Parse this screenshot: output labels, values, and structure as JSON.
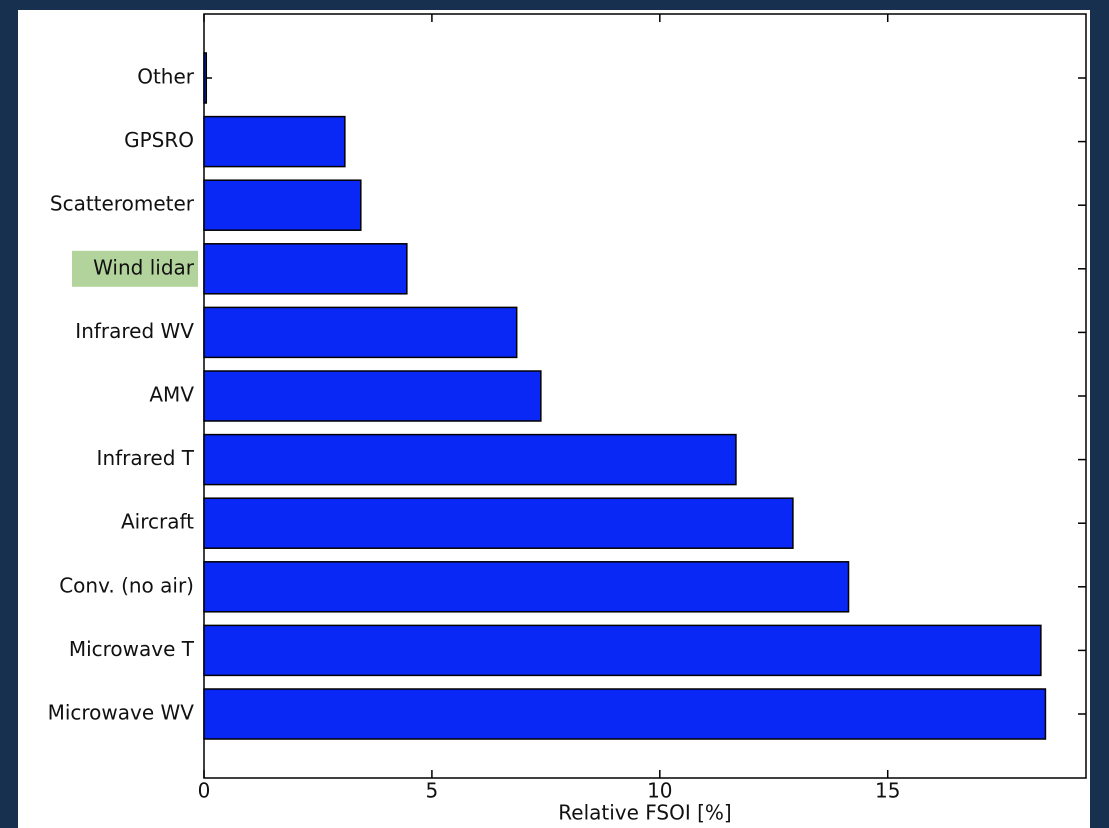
{
  "chart_data": {
    "type": "barh",
    "categories": [
      "Other",
      "GPSRO",
      "Scatterometer",
      "Wind lidar",
      "Infrared WV",
      "AMV",
      "Infrared T",
      "Aircraft",
      "Conv. (no air)",
      "Microwave T",
      "Microwave WV"
    ],
    "values": [
      0.05,
      3.09,
      3.44,
      4.45,
      6.86,
      7.39,
      11.67,
      12.92,
      14.14,
      18.36,
      18.46
    ],
    "color": "#0a28f5",
    "xlabel": "Relative FSOI [%]",
    "xlim": [
      0,
      19.35
    ],
    "xticks": [
      0,
      5,
      10,
      15
    ],
    "highlighted_categories": [
      3
    ],
    "highlight_color": "#b3d39c"
  }
}
